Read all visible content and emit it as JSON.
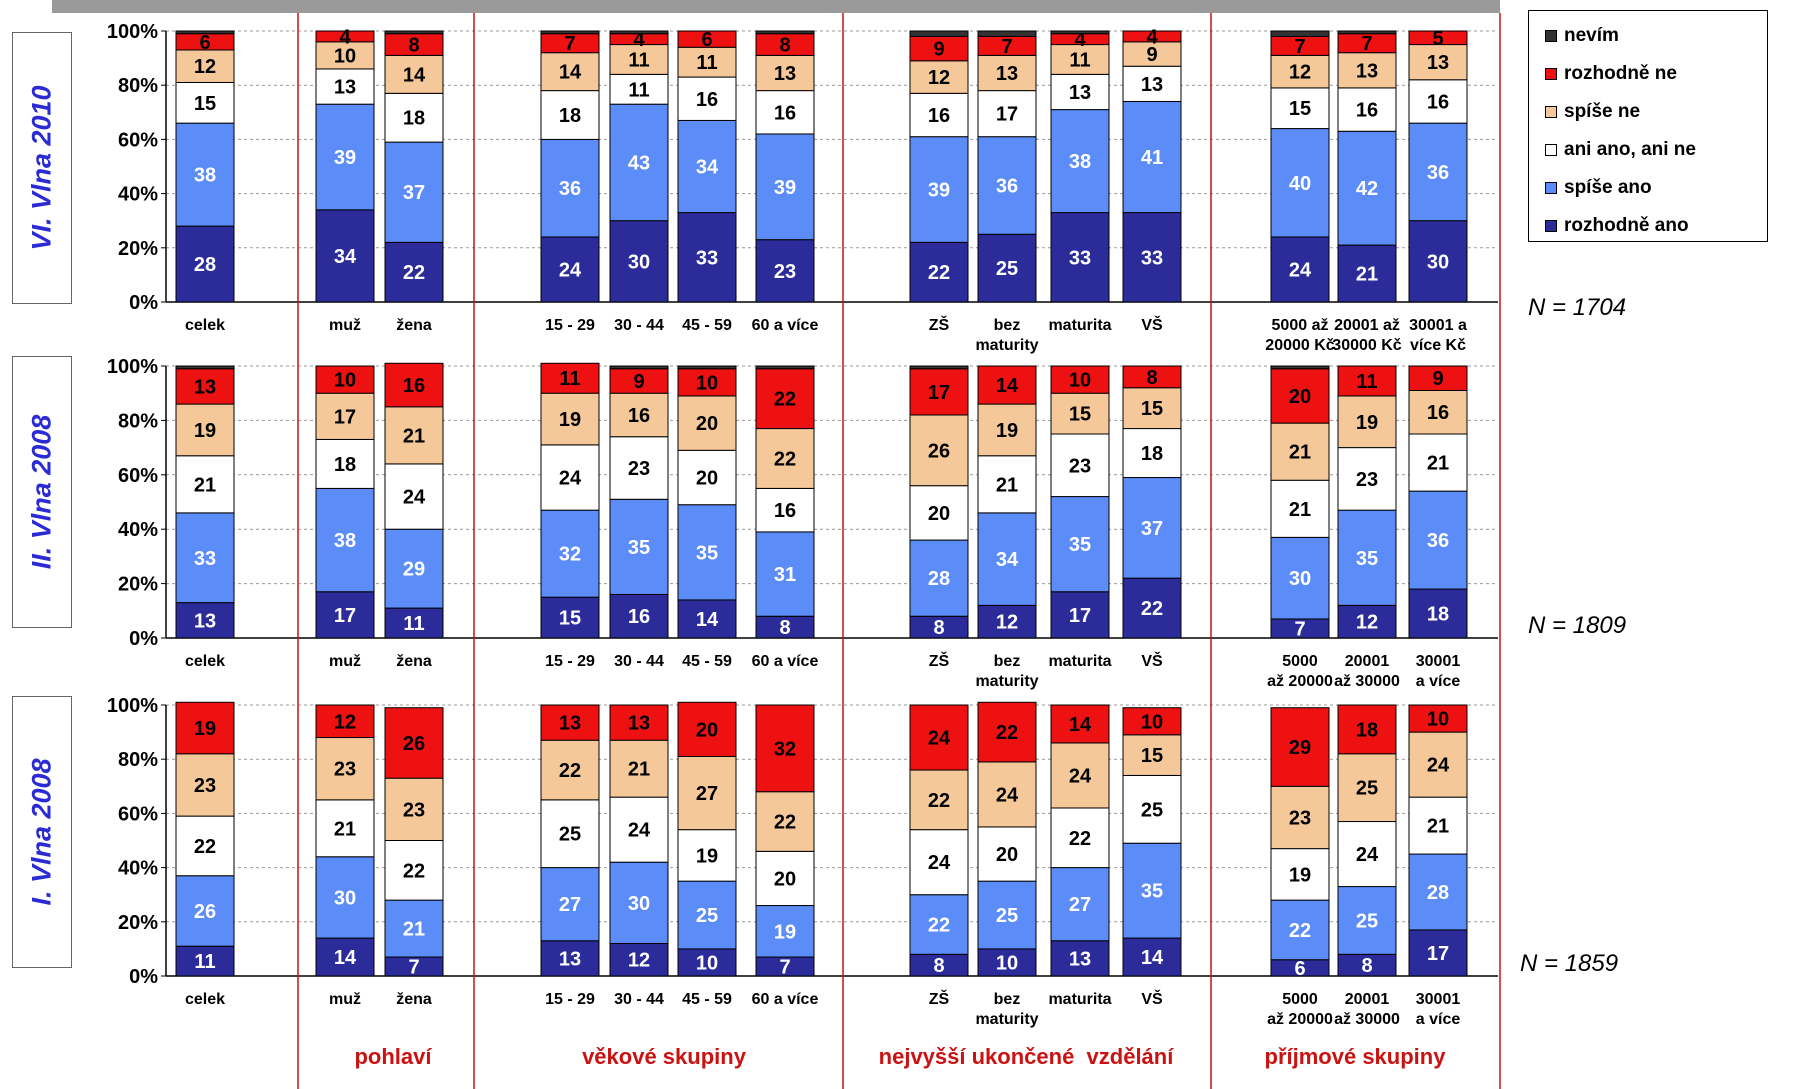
{
  "legend": [
    {
      "key": "nevim",
      "label": "nevím",
      "color": "#333333"
    },
    {
      "key": "rozhodne_ne",
      "label": "rozhodně ne",
      "color": "#ee1111"
    },
    {
      "key": "spise_ne",
      "label": "spíše ne",
      "color": "#f5c89a"
    },
    {
      "key": "ani",
      "label": "ani ano, ani ne",
      "color": "#ffffff"
    },
    {
      "key": "spise_ano",
      "label": "spíše ano",
      "color": "#5c8cf8"
    },
    {
      "key": "rozhodne_ano",
      "label": "rozhodně ano",
      "color": "#2b2b9a"
    }
  ],
  "group_labels": [
    "pohlaví",
    "věkové skupiny",
    "nejvyšší ukončené  vzdělání",
    "příjmové skupiny"
  ],
  "y_ticks": [
    "100%",
    "80%",
    "60%",
    "40%",
    "20%",
    "0%"
  ],
  "chart_data": [
    {
      "type": "bar",
      "stacked": true,
      "wave_label": "VI. Vlna 2010",
      "n_label": "N = 1704",
      "ylim": [
        0,
        100
      ],
      "categories": [
        "celek",
        "muž",
        "žena",
        "15 - 29",
        "30 - 44",
        "45 - 59",
        "60 a více",
        "ZŠ",
        "bez maturity",
        "maturita",
        "VŠ",
        "5000 až 20000 Kč",
        "20001 až 30000 Kč",
        "30001 a více Kč"
      ],
      "category_labels": [
        [
          "celek"
        ],
        [
          "muž"
        ],
        [
          "žena"
        ],
        [
          "15 - 29"
        ],
        [
          "30 - 44"
        ],
        [
          "45 - 59"
        ],
        [
          "60 a více"
        ],
        [
          "ZŠ"
        ],
        [
          "bez",
          "maturity"
        ],
        [
          "maturita"
        ],
        [
          "VŠ"
        ],
        [
          "5000 až",
          "20000 Kč"
        ],
        [
          "20001 až",
          "30000 Kč"
        ],
        [
          "30001 a",
          "více Kč"
        ]
      ],
      "series": [
        {
          "name": "rozhodně ano",
          "values": [
            28,
            34,
            22,
            24,
            30,
            33,
            23,
            22,
            25,
            33,
            33,
            24,
            21,
            30
          ]
        },
        {
          "name": "spíše ano",
          "values": [
            38,
            39,
            37,
            36,
            43,
            34,
            39,
            39,
            36,
            38,
            41,
            40,
            42,
            36
          ]
        },
        {
          "name": "ani ano, ani ne",
          "values": [
            15,
            13,
            18,
            18,
            11,
            16,
            16,
            16,
            17,
            13,
            13,
            15,
            16,
            16
          ]
        },
        {
          "name": "spíše ne",
          "values": [
            12,
            10,
            14,
            14,
            11,
            11,
            13,
            12,
            13,
            11,
            9,
            12,
            13,
            13
          ]
        },
        {
          "name": "rozhodně ne",
          "values": [
            6,
            4,
            8,
            7,
            4,
            6,
            8,
            9,
            7,
            4,
            4,
            7,
            7,
            5
          ]
        },
        {
          "name": "nevím",
          "values": [
            1,
            0,
            1,
            1,
            1,
            0,
            1,
            2,
            2,
            1,
            0,
            2,
            1,
            0
          ]
        }
      ],
      "data_labels": [
        [
          "28",
          "34",
          "22",
          "24",
          "30",
          "33",
          "23",
          "22",
          "25",
          "33",
          "33",
          "24",
          "21",
          "30"
        ],
        [
          "38",
          "39",
          "37",
          "36",
          "43",
          "34",
          "39",
          "39",
          "36",
          "38",
          "41",
          "40",
          "42",
          "36"
        ],
        [
          "15",
          "13",
          "18",
          "18",
          "11",
          "16",
          "16",
          "16",
          "17",
          "13",
          "13",
          "15",
          "16",
          "16"
        ],
        [
          "12",
          "10",
          "14",
          "14",
          "11",
          "11",
          "13",
          "12",
          "13",
          "11",
          "9",
          "12",
          "13",
          "13"
        ],
        [
          "6",
          "4",
          "8",
          "7",
          "4",
          "6",
          "8",
          "9",
          "7",
          "4",
          "4",
          "7",
          "7",
          "5"
        ],
        [
          "",
          "",
          "",
          "",
          "",
          "",
          "",
          "",
          "",
          "",
          "",
          "",
          "",
          ""
        ]
      ]
    },
    {
      "type": "bar",
      "stacked": true,
      "wave_label": "II. Vlna 2008",
      "n_label": "N = 1809",
      "ylim": [
        0,
        100
      ],
      "categories": [
        "celek",
        "muž",
        "žena",
        "15 - 29",
        "30 - 44",
        "45 - 59",
        "60 a více",
        "ZŠ",
        "bez maturity",
        "maturita",
        "VŠ",
        "5000 až 20000",
        "20001 až 30000",
        "30001 a více"
      ],
      "category_labels": [
        [
          "celek"
        ],
        [
          "muž"
        ],
        [
          "žena"
        ],
        [
          "15 - 29"
        ],
        [
          "30 - 44"
        ],
        [
          "45 - 59"
        ],
        [
          "60 a více"
        ],
        [
          "ZŠ"
        ],
        [
          "bez",
          "maturity"
        ],
        [
          "maturita"
        ],
        [
          "VŠ"
        ],
        [
          "5000",
          "až 20000"
        ],
        [
          "20001",
          "až 30000"
        ],
        [
          "30001",
          "a více"
        ]
      ],
      "series": [
        {
          "name": "rozhodně ano",
          "values": [
            13,
            17,
            11,
            15,
            16,
            14,
            8,
            8,
            12,
            17,
            22,
            7,
            12,
            18
          ]
        },
        {
          "name": "spíše ano",
          "values": [
            33,
            38,
            29,
            32,
            35,
            35,
            31,
            28,
            34,
            35,
            37,
            30,
            35,
            36
          ]
        },
        {
          "name": "ani ano, ani ne",
          "values": [
            21,
            18,
            24,
            24,
            23,
            20,
            16,
            20,
            21,
            23,
            18,
            21,
            23,
            21
          ]
        },
        {
          "name": "spíše ne",
          "values": [
            19,
            17,
            21,
            19,
            16,
            20,
            22,
            26,
            19,
            15,
            15,
            21,
            19,
            16
          ]
        },
        {
          "name": "rozhodně ne",
          "values": [
            13,
            10,
            16,
            11,
            9,
            10,
            22,
            17,
            14,
            10,
            8,
            20,
            11,
            9
          ]
        },
        {
          "name": "nevím",
          "values": [
            1,
            0,
            0,
            0,
            1,
            1,
            1,
            1,
            0,
            0,
            0,
            1,
            0,
            0
          ]
        }
      ],
      "data_labels": [
        [
          "13",
          "17",
          "11",
          "15",
          "16",
          "14",
          "8",
          "8",
          "12",
          "17",
          "22",
          "7",
          "12",
          "18"
        ],
        [
          "33",
          "38",
          "29",
          "32",
          "35",
          "35",
          "31",
          "28",
          "34",
          "35",
          "37",
          "30",
          "35",
          "36"
        ],
        [
          "21",
          "18",
          "24",
          "24",
          "23",
          "20",
          "16",
          "20",
          "21",
          "23",
          "18",
          "21",
          "23",
          "21"
        ],
        [
          "19",
          "17",
          "21",
          "19",
          "16",
          "20",
          "22",
          "26",
          "19",
          "15",
          "15",
          "21",
          "19",
          "16"
        ],
        [
          "13",
          "10",
          "16",
          "11",
          "9",
          "10",
          "22",
          "17",
          "14",
          "10",
          "8",
          "20",
          "11",
          "9"
        ],
        [
          "",
          "",
          "",
          "",
          "",
          "",
          "",
          "",
          "",
          "",
          "",
          "",
          "",
          ""
        ]
      ]
    },
    {
      "type": "bar",
      "stacked": true,
      "wave_label": "I. Vlna 2008",
      "n_label": "N = 1859",
      "ylim": [
        0,
        100
      ],
      "categories": [
        "celek",
        "muž",
        "žena",
        "15 - 29",
        "30 - 44",
        "45 - 59",
        "60 a více",
        "ZŠ",
        "bez maturity",
        "maturita",
        "VŠ",
        "5000 až 20000",
        "20001 až 30000",
        "30001 a více"
      ],
      "category_labels": [
        [
          "celek"
        ],
        [
          "muž"
        ],
        [
          "žena"
        ],
        [
          "15 - 29"
        ],
        [
          "30 - 44"
        ],
        [
          "45 - 59"
        ],
        [
          "60 a více"
        ],
        [
          "ZŠ"
        ],
        [
          "bez",
          "maturity"
        ],
        [
          "maturita"
        ],
        [
          "VŠ"
        ],
        [
          "5000",
          "až 20000"
        ],
        [
          "20001",
          "až 30000"
        ],
        [
          "30001",
          "a více"
        ]
      ],
      "series": [
        {
          "name": "rozhodně ano",
          "values": [
            11,
            14,
            7,
            13,
            12,
            10,
            7,
            8,
            10,
            13,
            14,
            6,
            8,
            17
          ]
        },
        {
          "name": "spíše ano",
          "values": [
            26,
            30,
            21,
            27,
            30,
            25,
            19,
            22,
            25,
            27,
            35,
            22,
            25,
            28
          ]
        },
        {
          "name": "ani ano, ani ne",
          "values": [
            22,
            21,
            22,
            25,
            24,
            19,
            20,
            24,
            20,
            22,
            25,
            19,
            24,
            21
          ]
        },
        {
          "name": "spíše ne",
          "values": [
            23,
            23,
            23,
            22,
            21,
            27,
            22,
            22,
            24,
            24,
            15,
            23,
            25,
            24
          ]
        },
        {
          "name": "rozhodně ne",
          "values": [
            19,
            12,
            26,
            13,
            13,
            20,
            32,
            24,
            22,
            14,
            10,
            29,
            18,
            10
          ]
        },
        {
          "name": "nevím",
          "values": [
            0,
            0,
            0,
            0,
            0,
            0,
            0,
            0,
            0,
            0,
            0,
            0,
            0,
            0
          ]
        }
      ],
      "data_labels": [
        [
          "11",
          "14",
          "7",
          "13",
          "12",
          "10",
          "7",
          "8",
          "10",
          "13",
          "14",
          "6",
          "8",
          "17"
        ],
        [
          "26",
          "30",
          "21",
          "27",
          "30",
          "25",
          "19",
          "22",
          "25",
          "27",
          "35",
          "22",
          "25",
          "28"
        ],
        [
          "22",
          "21",
          "22",
          "25",
          "24",
          "19",
          "20",
          "24",
          "20",
          "22",
          "25",
          "19",
          "24",
          "21"
        ],
        [
          "23",
          "23",
          "23",
          "22",
          "21",
          "27",
          "22",
          "22",
          "24",
          "24",
          "15",
          "23",
          "25",
          "24"
        ],
        [
          "19",
          "12",
          "26",
          "13",
          "13",
          "20",
          "32",
          "24",
          "22",
          "14",
          "10",
          "29",
          "18",
          "10"
        ],
        [
          "",
          "",
          "",
          "",
          "",
          "",
          "",
          "",
          "",
          "",
          "",
          "",
          "",
          ""
        ]
      ]
    }
  ]
}
